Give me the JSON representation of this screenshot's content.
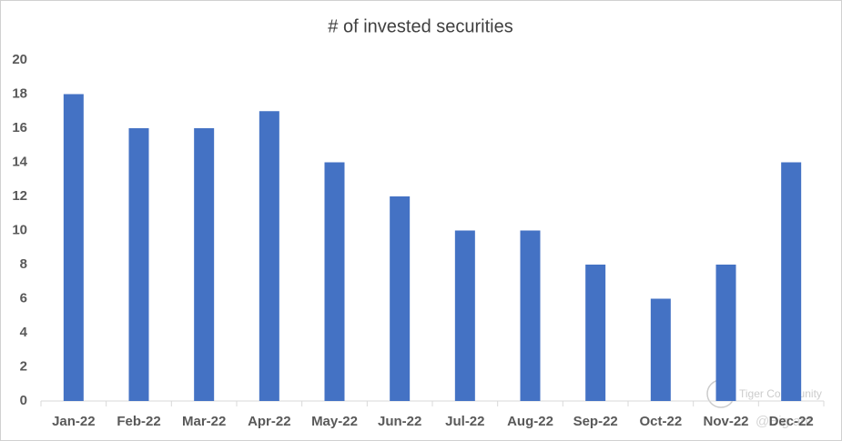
{
  "chart_data": {
    "type": "bar",
    "title": "# of invested securities",
    "categories": [
      "Jan-22",
      "Feb-22",
      "Mar-22",
      "Apr-22",
      "May-22",
      "Jun-22",
      "Jul-22",
      "Aug-22",
      "Sep-22",
      "Oct-22",
      "Nov-22",
      "Dec-22"
    ],
    "values": [
      18,
      16,
      16,
      17,
      14,
      12,
      10,
      10,
      8,
      6,
      8,
      14
    ],
    "color": "#4472c4",
    "ylim": [
      0,
      20
    ],
    "yticks": [
      0,
      2,
      4,
      6,
      8,
      10,
      12,
      14,
      16,
      18,
      20
    ],
    "grid": false,
    "watermark": [
      "Tiger Community",
      "@Big ant"
    ]
  }
}
